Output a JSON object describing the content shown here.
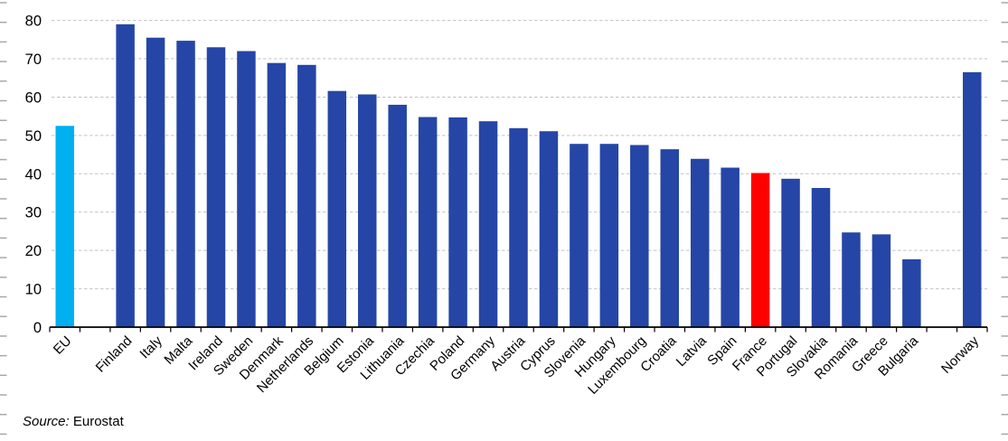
{
  "chart_data": {
    "type": "bar",
    "title": "",
    "xlabel": "",
    "ylabel": "",
    "categories": [
      "EU",
      "Finland",
      "Italy",
      "Malta",
      "Ireland",
      "Sweden",
      "Denmark",
      "Netherlands",
      "Belgium",
      "Estonia",
      "Lithuania",
      "Czechia",
      "Poland",
      "Germany",
      "Austria",
      "Cyprus",
      "Slovenia",
      "Hungary",
      "Luxembourg",
      "Croatia",
      "Latvia",
      "Spain",
      "France",
      "Portugal",
      "Slovakia",
      "Romania",
      "Greece",
      "Bulgaria",
      "Norway"
    ],
    "values": [
      52.5,
      79,
      75.5,
      74.7,
      73,
      72,
      68.9,
      68.4,
      61.6,
      60.7,
      58,
      54.8,
      54.7,
      53.7,
      51.9,
      51.1,
      47.8,
      47.8,
      47.5,
      46.4,
      43.9,
      41.6,
      40.2,
      38.7,
      36.3,
      24.7,
      24.2,
      17.7,
      66.5
    ],
    "ylim": [
      0,
      80
    ],
    "ytick_labels": [
      "0",
      "10",
      "20",
      "30",
      "40",
      "50",
      "60",
      "70",
      "80"
    ],
    "ytick_step": 10,
    "grid": "horizontal-dashed",
    "legend_position": "none",
    "x_label_rotation_deg": 45,
    "gaps_after": [
      "EU",
      "Bulgaria"
    ],
    "default_bar_color": "#2546a6",
    "bar_colors": {
      "EU": "#00b0f0",
      "France": "#ff0000"
    }
  },
  "colors": {
    "axis": "#000000",
    "gridline": "#c2c2c2",
    "edge_tick": "#a8a8a8",
    "text": "#000000"
  },
  "source": {
    "prefix": "Source:",
    "text": " Eurostat"
  }
}
